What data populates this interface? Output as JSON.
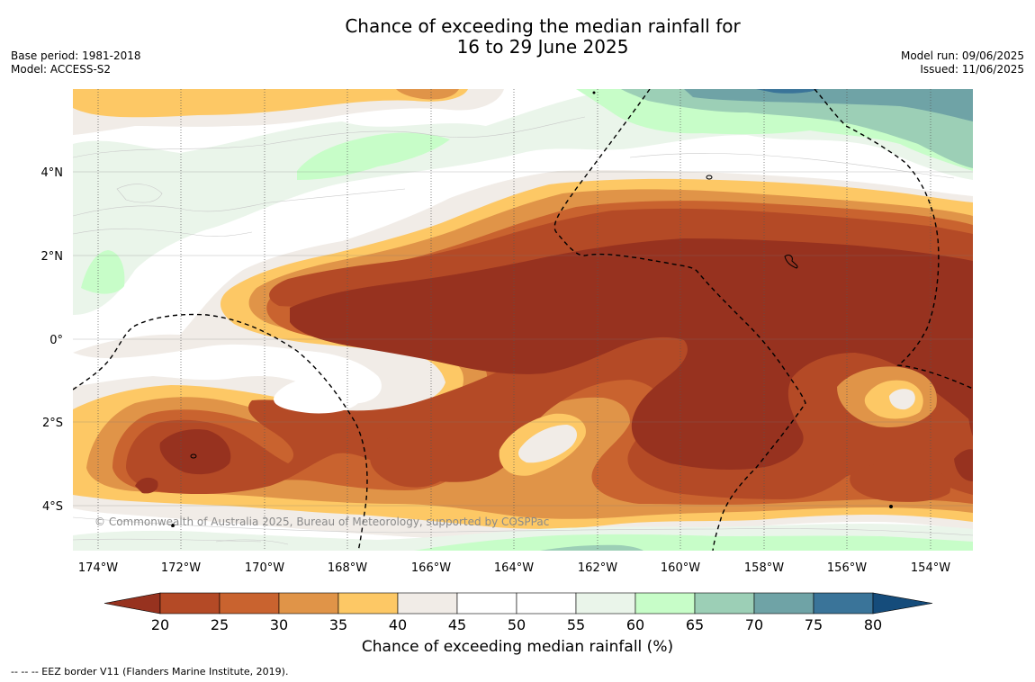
{
  "header": {
    "title_line1": "Chance of exceeding the median rainfall for",
    "title_line2": "16 to 29 June 2025",
    "base_period": "Base period: 1981-2018",
    "model": "Model: ACCESS-S2",
    "model_run": "Model run: 09/06/2025",
    "issued": "Issued: 11/06/2025"
  },
  "map": {
    "lon_ticks": [
      "174°W",
      "172°W",
      "170°W",
      "168°W",
      "166°W",
      "164°W",
      "162°W",
      "160°W",
      "158°W",
      "156°W",
      "154°W"
    ],
    "lat_ticks": [
      "4°N",
      "2°N",
      "0°",
      "2°S",
      "4°S"
    ],
    "credit": "© Commonwealth of Australia 2025, Bureau of Meteorology, supported by COSPPac",
    "extent": {
      "lon_min": -174.6,
      "lon_max": -153.0,
      "lat_min": -5.2,
      "lat_max": 5.8
    }
  },
  "colorbar": {
    "ticks": [
      "20",
      "25",
      "30",
      "35",
      "40",
      "45",
      "50",
      "55",
      "60",
      "65",
      "70",
      "75",
      "80"
    ],
    "colors": [
      "#97321f",
      "#b44a26",
      "#c9632f",
      "#e09448",
      "#fdc865",
      "#f1ece7",
      "#ffffff",
      "#ffffff",
      "#eaf5ea",
      "#c7fdc8",
      "#9ccfb6",
      "#6fa3a6",
      "#3a7499",
      "#154c7b"
    ],
    "label": "Chance of exceeding median rainfall (%)"
  },
  "footer": {
    "legend": "-- -- -- EEZ border V11 (Flanders Marine Institute, 2019)."
  }
}
